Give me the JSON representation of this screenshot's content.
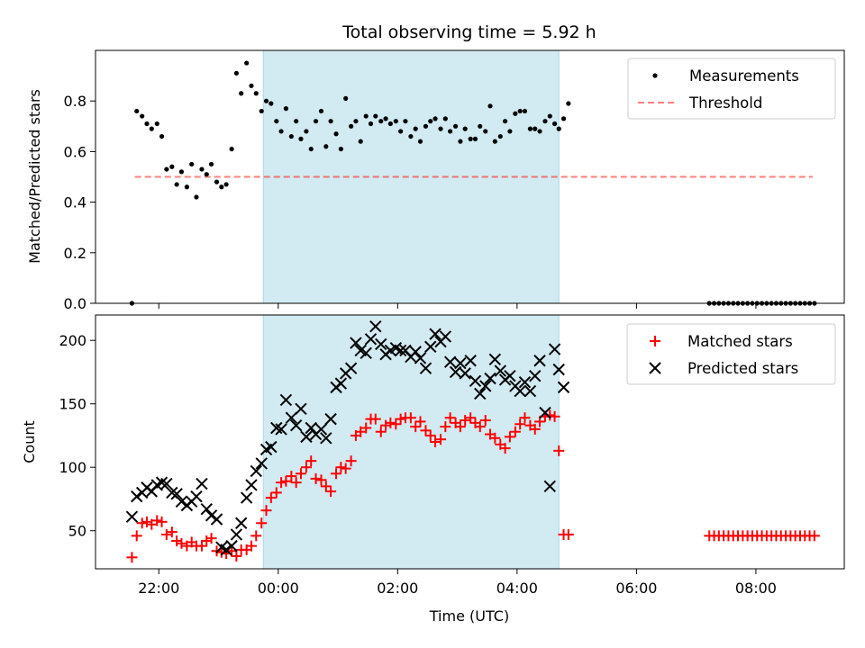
{
  "figure": {
    "title": "Total observing time = 5.92 h",
    "xlabel": "Time (UTC)",
    "x_ticks": [
      "22:00",
      "00:00",
      "02:00",
      "04:00",
      "06:00",
      "08:00"
    ]
  },
  "colors": {
    "shade": "#add8e6",
    "measurement": "#000000",
    "threshold": "#ff0000",
    "matched": "#ff0000",
    "predicted": "#000000"
  },
  "chart_data": [
    {
      "type": "scatter",
      "panel": "top",
      "ylabel": "Matched/Predicted stars",
      "y_ticks": [
        "0.0",
        "0.2",
        "0.4",
        "0.6",
        "0.8"
      ],
      "ylim": [
        0,
        1.0
      ],
      "xlim_hours": [
        20.94,
        33.48
      ],
      "shaded_interval_hours": [
        23.75,
        28.7
      ],
      "legend": {
        "position": "top-right",
        "entries": [
          "Measurements",
          "Threshold"
        ]
      },
      "threshold": {
        "name": "Threshold",
        "value": 0.5,
        "x_hours": [
          21.6,
          32.95
        ]
      },
      "series": [
        {
          "name": "Measurements",
          "x": [
            21.55,
            21.63,
            21.72,
            21.8,
            21.88,
            21.97,
            22.05,
            22.13,
            22.22,
            22.3,
            22.38,
            22.47,
            22.55,
            22.63,
            22.72,
            22.8,
            22.88,
            22.97,
            23.05,
            23.13,
            23.22,
            23.3,
            23.38,
            23.47,
            23.55,
            23.63,
            23.72,
            23.8,
            23.88,
            23.97,
            24.05,
            24.13,
            24.22,
            24.3,
            24.38,
            24.47,
            24.55,
            24.63,
            24.72,
            24.8,
            24.88,
            24.97,
            25.05,
            25.13,
            25.22,
            25.3,
            25.38,
            25.47,
            25.55,
            25.63,
            25.72,
            25.8,
            25.88,
            25.97,
            26.05,
            26.13,
            26.22,
            26.3,
            26.38,
            26.47,
            26.55,
            26.63,
            26.72,
            26.8,
            26.88,
            26.97,
            27.05,
            27.13,
            27.22,
            27.3,
            27.38,
            27.47,
            27.55,
            27.63,
            27.72,
            27.8,
            27.88,
            27.97,
            28.05,
            28.13,
            28.22,
            28.3,
            28.38,
            28.47,
            28.55,
            28.63,
            28.7,
            28.78,
            28.86,
            31.22,
            31.3,
            31.38,
            31.46,
            31.54,
            31.62,
            31.7,
            31.78,
            31.86,
            31.94,
            32.02,
            32.1,
            32.18,
            32.26,
            32.34,
            32.42,
            32.5,
            32.58,
            32.66,
            32.74,
            32.82,
            32.9,
            32.98
          ],
          "y": [
            0.0,
            0.76,
            0.74,
            0.71,
            0.69,
            0.71,
            0.66,
            0.53,
            0.54,
            0.47,
            0.52,
            0.46,
            0.55,
            0.42,
            0.53,
            0.51,
            0.55,
            0.48,
            0.46,
            0.47,
            0.61,
            0.91,
            0.83,
            0.95,
            0.86,
            0.83,
            0.76,
            0.8,
            0.79,
            0.72,
            0.68,
            0.77,
            0.66,
            0.72,
            0.65,
            0.68,
            0.61,
            0.72,
            0.76,
            0.62,
            0.72,
            0.67,
            0.61,
            0.81,
            0.7,
            0.72,
            0.64,
            0.74,
            0.71,
            0.74,
            0.72,
            0.73,
            0.71,
            0.72,
            0.68,
            0.72,
            0.66,
            0.69,
            0.64,
            0.7,
            0.72,
            0.73,
            0.69,
            0.73,
            0.68,
            0.7,
            0.64,
            0.69,
            0.65,
            0.65,
            0.7,
            0.68,
            0.78,
            0.64,
            0.66,
            0.72,
            0.68,
            0.75,
            0.76,
            0.76,
            0.69,
            0.69,
            0.68,
            0.72,
            0.74,
            0.71,
            0.69,
            0.73,
            0.79,
            0.0,
            0.0,
            0.0,
            0.0,
            0.0,
            0.0,
            0.0,
            0.0,
            0.0,
            0.0,
            0.0,
            0.0,
            0.0,
            0.0,
            0.0,
            0.0,
            0.0,
            0.0,
            0.0,
            0.0,
            0.0,
            0.0,
            0.0
          ]
        }
      ]
    },
    {
      "type": "scatter",
      "panel": "bottom",
      "ylabel": "Count",
      "y_ticks": [
        "50",
        "100",
        "150",
        "200"
      ],
      "ylim": [
        20,
        220
      ],
      "xlim_hours": [
        20.94,
        33.48
      ],
      "shaded_interval_hours": [
        23.75,
        28.7
      ],
      "legend": {
        "position": "top-right",
        "entries": [
          "Matched stars",
          "Predicted stars"
        ]
      },
      "series": [
        {
          "name": "Matched stars",
          "marker": "+",
          "x": [
            21.55,
            21.63,
            21.72,
            21.8,
            21.88,
            21.97,
            22.05,
            22.13,
            22.22,
            22.3,
            22.38,
            22.47,
            22.55,
            22.63,
            22.72,
            22.8,
            22.88,
            22.97,
            23.05,
            23.13,
            23.22,
            23.3,
            23.38,
            23.47,
            23.55,
            23.63,
            23.72,
            23.8,
            23.88,
            23.97,
            24.05,
            24.13,
            24.22,
            24.3,
            24.38,
            24.47,
            24.55,
            24.63,
            24.72,
            24.8,
            24.88,
            24.97,
            25.05,
            25.13,
            25.22,
            25.3,
            25.38,
            25.47,
            25.55,
            25.63,
            25.72,
            25.8,
            25.88,
            25.97,
            26.05,
            26.13,
            26.22,
            26.3,
            26.38,
            26.47,
            26.55,
            26.63,
            26.72,
            26.8,
            26.88,
            26.97,
            27.05,
            27.13,
            27.22,
            27.3,
            27.38,
            27.47,
            27.55,
            27.63,
            27.72,
            27.8,
            27.88,
            27.97,
            28.05,
            28.13,
            28.22,
            28.3,
            28.38,
            28.47,
            28.55,
            28.63,
            28.7,
            28.78,
            28.86,
            31.22,
            31.3,
            31.38,
            31.46,
            31.54,
            31.62,
            31.7,
            31.78,
            31.86,
            31.94,
            32.02,
            32.1,
            32.18,
            32.26,
            32.34,
            32.42,
            32.5,
            32.58,
            32.66,
            32.74,
            32.82,
            32.9,
            32.98
          ],
          "y": [
            29,
            46,
            56,
            57,
            55,
            58,
            57,
            47,
            49,
            42,
            40,
            38,
            41,
            38,
            38,
            42,
            44,
            34,
            33,
            32,
            34,
            30,
            35,
            35,
            38,
            46,
            56,
            66,
            76,
            80,
            88,
            89,
            93,
            88,
            95,
            100,
            105,
            91,
            90,
            85,
            81,
            95,
            100,
            99,
            105,
            125,
            128,
            131,
            138,
            138,
            128,
            133,
            135,
            134,
            138,
            139,
            139,
            132,
            136,
            129,
            125,
            120,
            122,
            132,
            139,
            135,
            132,
            137,
            139,
            135,
            132,
            137,
            126,
            123,
            118,
            115,
            124,
            128,
            134,
            139,
            133,
            130,
            136,
            140,
            141,
            140,
            113,
            47,
            47,
            46,
            46,
            46,
            46,
            46,
            46,
            46,
            46,
            46,
            46,
            46,
            46,
            46,
            46,
            46,
            46,
            46,
            46,
            46,
            46,
            46,
            46,
            46
          ]
        },
        {
          "name": "Predicted stars",
          "marker": "x",
          "x": [
            21.55,
            21.63,
            21.72,
            21.8,
            21.88,
            21.97,
            22.05,
            22.13,
            22.22,
            22.3,
            22.38,
            22.47,
            22.55,
            22.63,
            22.72,
            22.8,
            22.88,
            22.97,
            23.05,
            23.13,
            23.22,
            23.3,
            23.38,
            23.47,
            23.55,
            23.63,
            23.72,
            23.8,
            23.88,
            23.97,
            24.05,
            24.13,
            24.22,
            24.3,
            24.38,
            24.47,
            24.55,
            24.63,
            24.72,
            24.8,
            24.88,
            24.97,
            25.05,
            25.13,
            25.22,
            25.3,
            25.38,
            25.47,
            25.55,
            25.63,
            25.72,
            25.8,
            25.88,
            25.97,
            26.05,
            26.13,
            26.22,
            26.3,
            26.38,
            26.47,
            26.55,
            26.63,
            26.72,
            26.8,
            26.88,
            26.97,
            27.05,
            27.13,
            27.22,
            27.3,
            27.38,
            27.47,
            27.55,
            27.63,
            27.72,
            27.8,
            27.88,
            27.97,
            28.05,
            28.13,
            28.22,
            28.3,
            28.38,
            28.47,
            28.55,
            28.63,
            28.7,
            28.78
          ],
          "y": [
            61,
            77,
            80,
            84,
            81,
            86,
            88,
            87,
            80,
            79,
            73,
            70,
            73,
            77,
            87,
            67,
            62,
            59,
            37,
            35,
            38,
            47,
            56,
            76,
            86,
            97,
            103,
            114,
            116,
            131,
            130,
            153,
            139,
            133,
            146,
            124,
            131,
            126,
            130,
            123,
            138,
            163,
            166,
            174,
            178,
            198,
            192,
            190,
            201,
            211,
            197,
            189,
            192,
            194,
            192,
            192,
            187,
            191,
            186,
            178,
            195,
            205,
            199,
            203,
            183,
            175,
            182,
            174,
            184,
            168,
            158,
            164,
            170,
            185,
            176,
            169,
            172,
            164,
            160,
            167,
            160,
            172,
            184,
            143,
            85,
            193,
            177,
            163
          ]
        }
      ]
    }
  ]
}
